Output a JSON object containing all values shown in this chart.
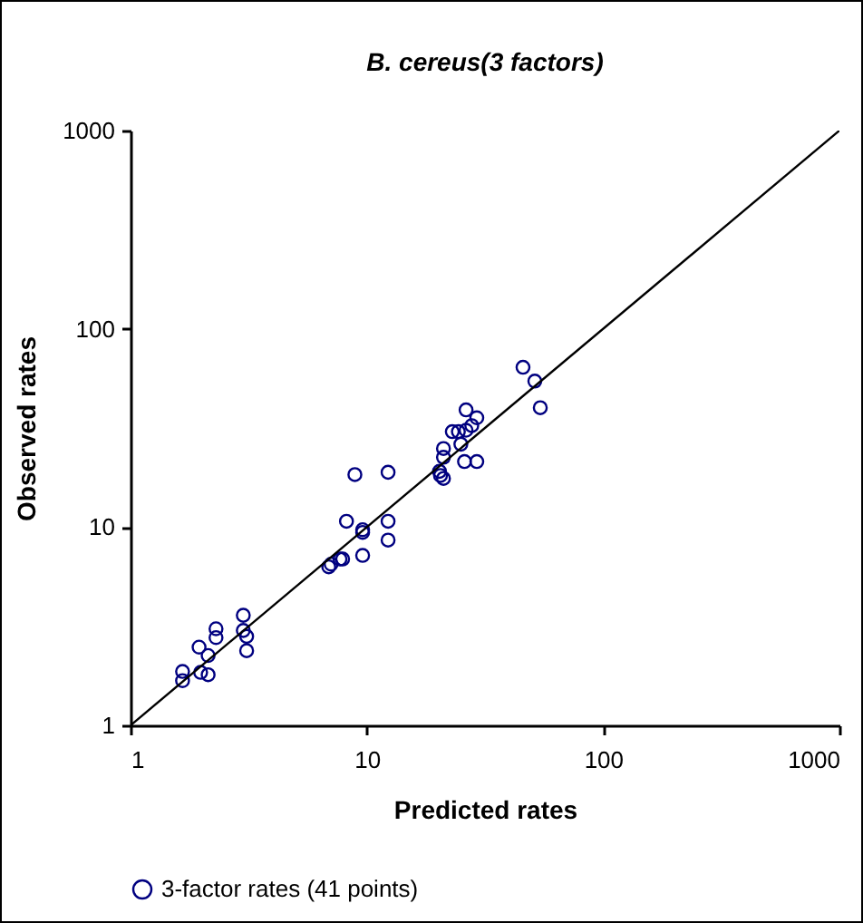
{
  "chart_data": {
    "type": "scatter",
    "title": "B. cereus(3 factors)",
    "xlabel": "Predicted rates",
    "ylabel": "Observed rates",
    "log": "xy",
    "xlim": [
      1,
      1000
    ],
    "ylim": [
      1,
      1000
    ],
    "xticks": [
      1,
      10,
      100,
      1000
    ],
    "yticks": [
      1,
      10,
      100,
      1000
    ],
    "grid": false,
    "legend": "bottom",
    "series": [
      {
        "name": "3-factor rates (41 points)",
        "color": "#000080",
        "marker": "circle",
        "x": [
          1.66,
          1.66,
          1.95,
          1.98,
          2.13,
          2.13,
          2.3,
          2.3,
          3.0,
          3.0,
          3.1,
          3.1,
          6.9,
          7.06,
          7.7,
          7.9,
          8.2,
          8.9,
          9.6,
          9.6,
          9.6,
          12.3,
          12.3,
          12.3,
          20.3,
          20.5,
          21.1,
          21.1,
          21.1,
          23,
          24.4,
          25,
          25.9,
          26.3,
          26.3,
          27.8,
          29.2,
          29.2,
          45.8,
          51.4,
          54.2
        ],
        "values": [
          1.87,
          1.68,
          2.48,
          1.85,
          2.25,
          1.8,
          3.07,
          2.77,
          3.59,
          3.01,
          2.81,
          2.38,
          6.3,
          6.5,
          6.9,
          6.9,
          10.7,
          18.4,
          9.7,
          9.4,
          7.2,
          18.9,
          10.7,
          8.6,
          19.1,
          18.2,
          17.6,
          24.9,
          22.5,
          30.3,
          30.3,
          26.2,
          21.4,
          39,
          30.8,
          32.5,
          21.4,
          35.6,
          64,
          54.5,
          40
        ]
      },
      {
        "type": "line",
        "color": "#000000",
        "line_style": "solid",
        "marker": "none",
        "x": [
          1,
          1000
        ],
        "values": [
          1,
          1000
        ]
      }
    ]
  }
}
